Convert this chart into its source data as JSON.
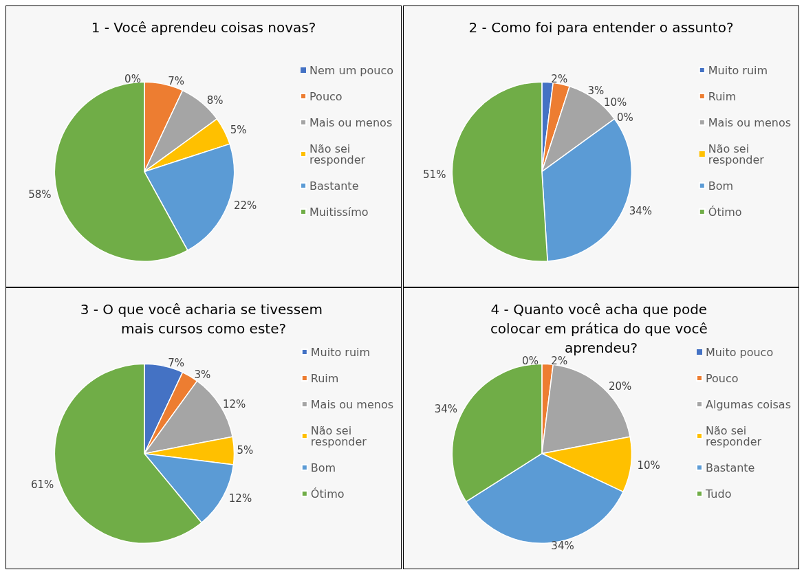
{
  "chart_data": [
    {
      "type": "pie",
      "title": "1 - Você aprendeu coisas novas?",
      "categories": [
        "Nem um pouco",
        "Pouco",
        "Mais ou menos",
        "Não sei responder",
        "Bastante",
        "Muitissímo"
      ],
      "values": [
        0,
        7,
        8,
        5,
        22,
        58
      ],
      "value_labels": [
        "0%",
        "7%",
        "8%",
        "5%",
        "22%",
        "58%"
      ],
      "colors": [
        "#4472c4",
        "#ed7d31",
        "#a5a5a5",
        "#ffc000",
        "#5b9bd5",
        "#70ad47"
      ],
      "legend": "right"
    },
    {
      "type": "pie",
      "title": "2 - Como foi para entender o assunto?",
      "categories": [
        "Muito ruim",
        "Ruim",
        "Mais ou menos",
        "Não sei responder",
        "Bom",
        "Ótimo"
      ],
      "values": [
        2,
        3,
        10,
        0,
        34,
        51
      ],
      "value_labels": [
        "2%",
        "3%",
        "10%",
        "0%",
        "34%",
        "51%"
      ],
      "colors": [
        "#4472c4",
        "#ed7d31",
        "#a5a5a5",
        "#ffc000",
        "#5b9bd5",
        "#70ad47"
      ],
      "legend": "right"
    },
    {
      "type": "pie",
      "title": "3 - O que você acharia se tivessem mais cursos como este?",
      "categories": [
        "Muito ruim",
        "Ruim",
        "Mais ou menos",
        "Não sei responder",
        "Bom",
        "Ótimo"
      ],
      "values": [
        7,
        3,
        12,
        5,
        12,
        61
      ],
      "value_labels": [
        "7%",
        "3%",
        "12%",
        "5%",
        "12%",
        "61%"
      ],
      "colors": [
        "#4472c4",
        "#ed7d31",
        "#a5a5a5",
        "#ffc000",
        "#5b9bd5",
        "#70ad47"
      ],
      "legend": "right"
    },
    {
      "type": "pie",
      "title": "4 - Quanto você acha que pode colocar em prática do que você aprendeu?",
      "categories": [
        "Muito pouco",
        "Pouco",
        "Algumas coisas",
        "Não sei responder",
        "Bastante",
        "Tudo"
      ],
      "values": [
        0,
        2,
        20,
        10,
        34,
        34
      ],
      "value_labels": [
        "0%",
        "2%",
        "20%",
        "10%",
        "34%",
        "34%"
      ],
      "colors": [
        "#4472c4",
        "#ed7d31",
        "#a5a5a5",
        "#ffc000",
        "#5b9bd5",
        "#70ad47"
      ],
      "legend": "right"
    }
  ]
}
